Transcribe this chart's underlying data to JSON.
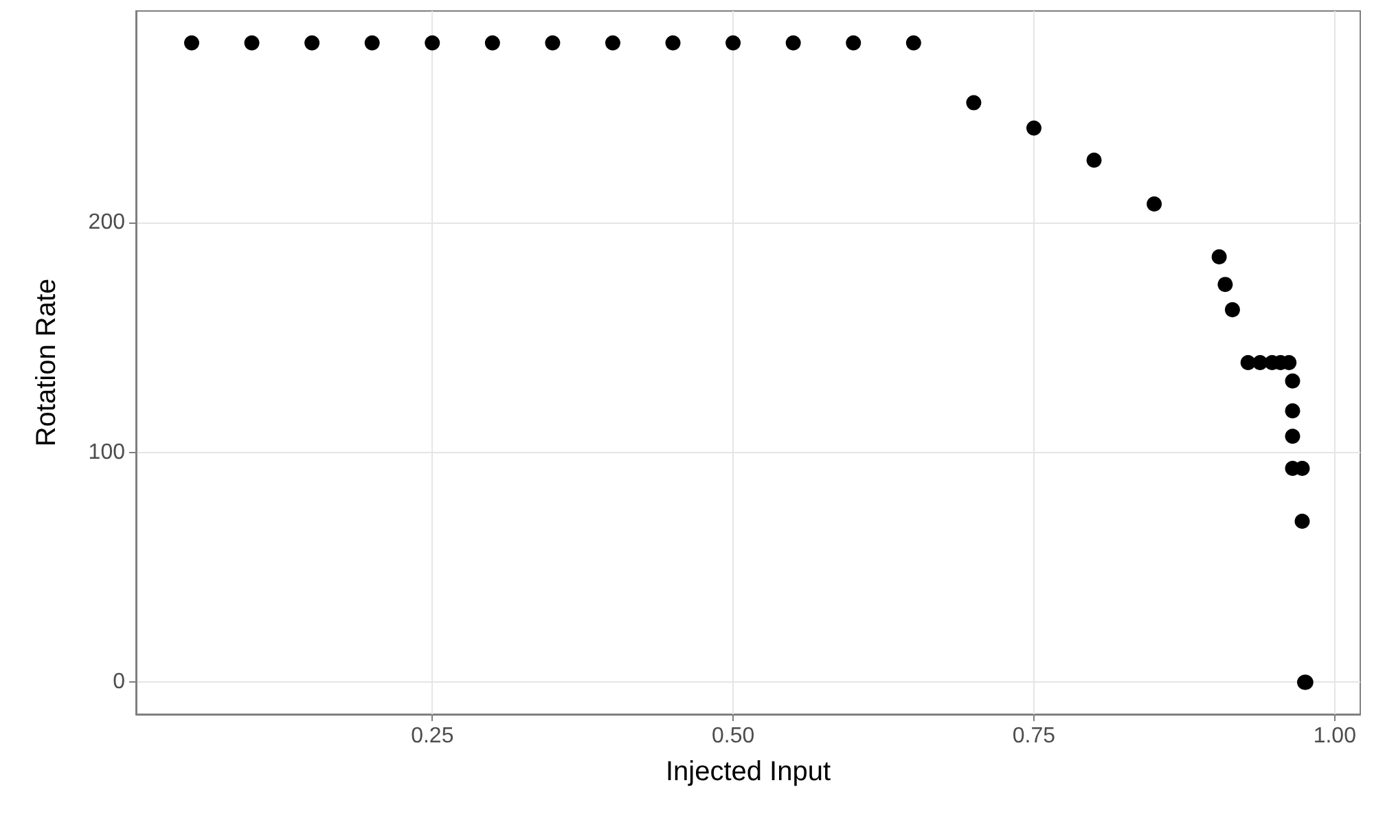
{
  "chart_data": {
    "type": "scatter",
    "xlabel": "Injected Input",
    "ylabel": "Rotation Rate",
    "marker": "circle",
    "grid": true,
    "x": [
      0.05,
      0.1,
      0.15,
      0.2,
      0.25,
      0.3,
      0.35,
      0.4,
      0.45,
      0.5,
      0.55,
      0.6,
      0.65,
      0.7,
      0.75,
      0.8,
      0.85,
      0.904,
      0.909,
      0.915,
      0.928,
      0.938,
      0.948,
      0.955,
      0.962,
      0.965,
      0.965,
      0.965,
      0.965,
      0.973,
      0.973,
      0.975,
      0.976
    ],
    "series": [
      {
        "color": "#000000",
        "values": [
          278,
          278,
          278,
          278,
          278,
          278,
          278,
          278,
          278,
          278,
          278,
          278,
          278,
          252,
          241,
          227,
          208,
          185,
          173,
          162,
          139,
          139,
          139,
          139,
          139,
          131,
          118,
          107,
          93,
          93,
          70,
          0,
          0
        ]
      }
    ],
    "xlim": [
      0.00375,
      1.02125
    ],
    "xticks": [
      {
        "value": 0.25,
        "label": "0.25"
      },
      {
        "value": 0.5,
        "label": "0.50"
      },
      {
        "value": 0.75,
        "label": "0.75"
      },
      {
        "value": 1,
        "label": "1.00"
      }
    ],
    "ylim": [
      -13.9,
      291.9
    ],
    "yticks": [
      0,
      100,
      200
    ]
  }
}
